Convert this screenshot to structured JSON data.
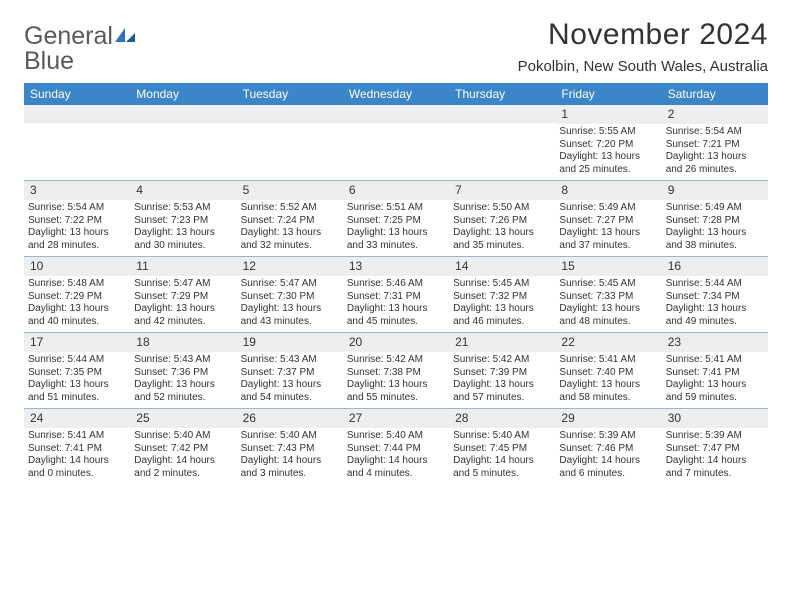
{
  "logo": {
    "word1": "General",
    "word2": "Blue"
  },
  "title": "November 2024",
  "location": "Pokolbin, New South Wales, Australia",
  "colors": {
    "header_bar": "#3a86c8",
    "daynum_bg": "#eceef0",
    "rule": "#9cb6cd",
    "logo_gray": "#5a5a5a",
    "logo_blue": "#2e72b8",
    "text": "#333333",
    "bg": "#ffffff"
  },
  "day_headers": [
    "Sunday",
    "Monday",
    "Tuesday",
    "Wednesday",
    "Thursday",
    "Friday",
    "Saturday"
  ],
  "weeks": [
    [
      {
        "blank": true
      },
      {
        "blank": true
      },
      {
        "blank": true
      },
      {
        "blank": true
      },
      {
        "blank": true
      },
      {
        "n": "1",
        "sunrise": "5:55 AM",
        "sunset": "7:20 PM",
        "daylight": "13 hours and 25 minutes."
      },
      {
        "n": "2",
        "sunrise": "5:54 AM",
        "sunset": "7:21 PM",
        "daylight": "13 hours and 26 minutes."
      }
    ],
    [
      {
        "n": "3",
        "sunrise": "5:54 AM",
        "sunset": "7:22 PM",
        "daylight": "13 hours and 28 minutes."
      },
      {
        "n": "4",
        "sunrise": "5:53 AM",
        "sunset": "7:23 PM",
        "daylight": "13 hours and 30 minutes."
      },
      {
        "n": "5",
        "sunrise": "5:52 AM",
        "sunset": "7:24 PM",
        "daylight": "13 hours and 32 minutes."
      },
      {
        "n": "6",
        "sunrise": "5:51 AM",
        "sunset": "7:25 PM",
        "daylight": "13 hours and 33 minutes."
      },
      {
        "n": "7",
        "sunrise": "5:50 AM",
        "sunset": "7:26 PM",
        "daylight": "13 hours and 35 minutes."
      },
      {
        "n": "8",
        "sunrise": "5:49 AM",
        "sunset": "7:27 PM",
        "daylight": "13 hours and 37 minutes."
      },
      {
        "n": "9",
        "sunrise": "5:49 AM",
        "sunset": "7:28 PM",
        "daylight": "13 hours and 38 minutes."
      }
    ],
    [
      {
        "n": "10",
        "sunrise": "5:48 AM",
        "sunset": "7:29 PM",
        "daylight": "13 hours and 40 minutes."
      },
      {
        "n": "11",
        "sunrise": "5:47 AM",
        "sunset": "7:29 PM",
        "daylight": "13 hours and 42 minutes."
      },
      {
        "n": "12",
        "sunrise": "5:47 AM",
        "sunset": "7:30 PM",
        "daylight": "13 hours and 43 minutes."
      },
      {
        "n": "13",
        "sunrise": "5:46 AM",
        "sunset": "7:31 PM",
        "daylight": "13 hours and 45 minutes."
      },
      {
        "n": "14",
        "sunrise": "5:45 AM",
        "sunset": "7:32 PM",
        "daylight": "13 hours and 46 minutes."
      },
      {
        "n": "15",
        "sunrise": "5:45 AM",
        "sunset": "7:33 PM",
        "daylight": "13 hours and 48 minutes."
      },
      {
        "n": "16",
        "sunrise": "5:44 AM",
        "sunset": "7:34 PM",
        "daylight": "13 hours and 49 minutes."
      }
    ],
    [
      {
        "n": "17",
        "sunrise": "5:44 AM",
        "sunset": "7:35 PM",
        "daylight": "13 hours and 51 minutes."
      },
      {
        "n": "18",
        "sunrise": "5:43 AM",
        "sunset": "7:36 PM",
        "daylight": "13 hours and 52 minutes."
      },
      {
        "n": "19",
        "sunrise": "5:43 AM",
        "sunset": "7:37 PM",
        "daylight": "13 hours and 54 minutes."
      },
      {
        "n": "20",
        "sunrise": "5:42 AM",
        "sunset": "7:38 PM",
        "daylight": "13 hours and 55 minutes."
      },
      {
        "n": "21",
        "sunrise": "5:42 AM",
        "sunset": "7:39 PM",
        "daylight": "13 hours and 57 minutes."
      },
      {
        "n": "22",
        "sunrise": "5:41 AM",
        "sunset": "7:40 PM",
        "daylight": "13 hours and 58 minutes."
      },
      {
        "n": "23",
        "sunrise": "5:41 AM",
        "sunset": "7:41 PM",
        "daylight": "13 hours and 59 minutes."
      }
    ],
    [
      {
        "n": "24",
        "sunrise": "5:41 AM",
        "sunset": "7:41 PM",
        "daylight": "14 hours and 0 minutes."
      },
      {
        "n": "25",
        "sunrise": "5:40 AM",
        "sunset": "7:42 PM",
        "daylight": "14 hours and 2 minutes."
      },
      {
        "n": "26",
        "sunrise": "5:40 AM",
        "sunset": "7:43 PM",
        "daylight": "14 hours and 3 minutes."
      },
      {
        "n": "27",
        "sunrise": "5:40 AM",
        "sunset": "7:44 PM",
        "daylight": "14 hours and 4 minutes."
      },
      {
        "n": "28",
        "sunrise": "5:40 AM",
        "sunset": "7:45 PM",
        "daylight": "14 hours and 5 minutes."
      },
      {
        "n": "29",
        "sunrise": "5:39 AM",
        "sunset": "7:46 PM",
        "daylight": "14 hours and 6 minutes."
      },
      {
        "n": "30",
        "sunrise": "5:39 AM",
        "sunset": "7:47 PM",
        "daylight": "14 hours and 7 minutes."
      }
    ]
  ],
  "labels": {
    "sunrise_prefix": "Sunrise: ",
    "sunset_prefix": "Sunset: ",
    "daylight_prefix": "Daylight: "
  }
}
